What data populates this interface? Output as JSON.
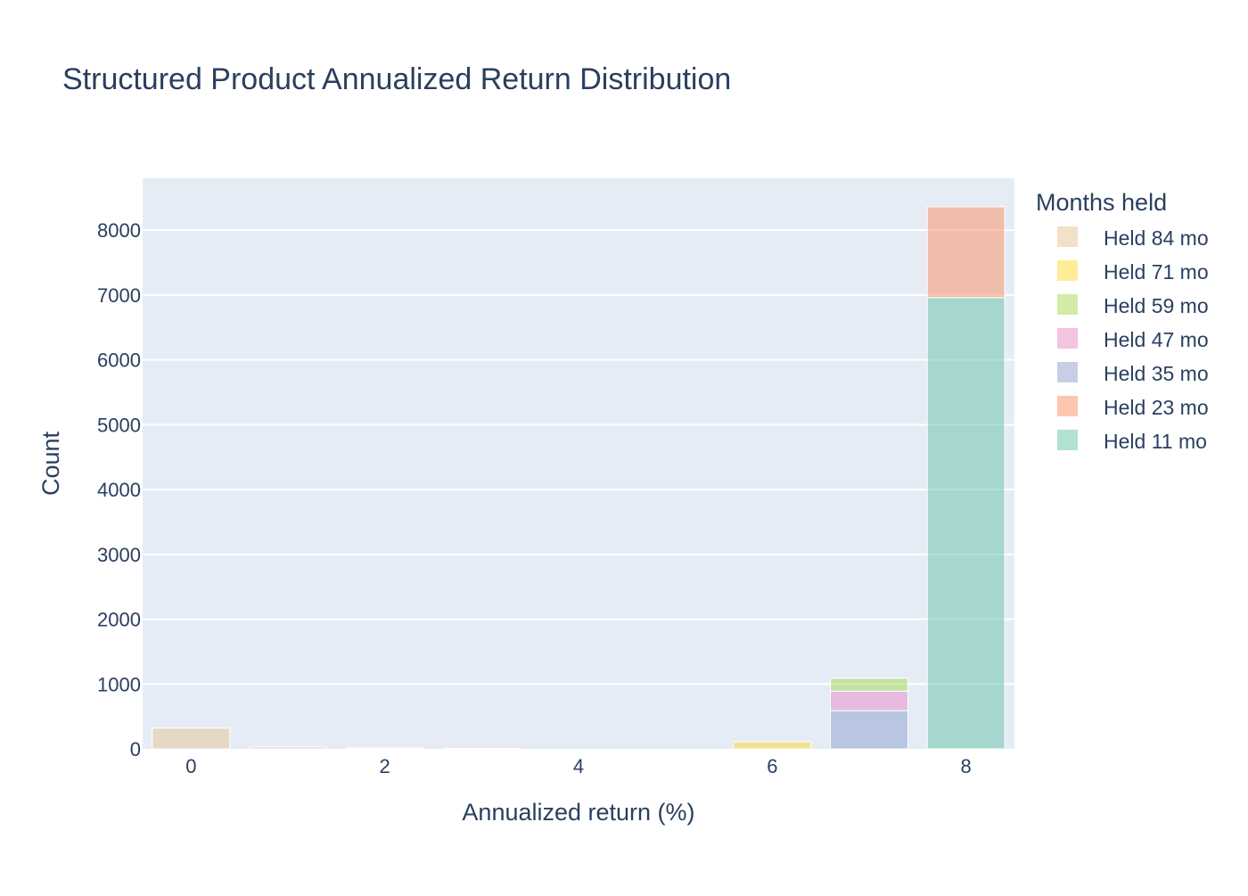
{
  "chart_data": {
    "type": "bar",
    "barmode": "stack",
    "title": "Structured Product Annualized Return Distribution",
    "xlabel": "Annualized return (%)",
    "ylabel": "Count",
    "x": [
      0,
      1,
      2,
      3,
      4,
      5,
      6,
      7,
      8
    ],
    "xlim": [
      -0.5,
      8.5
    ],
    "ylim": [
      0,
      8800
    ],
    "xticks": [
      0,
      2,
      4,
      6,
      8
    ],
    "yticks": [
      0,
      1000,
      2000,
      3000,
      4000,
      5000,
      6000,
      7000,
      8000
    ],
    "grid": true,
    "legend": {
      "title": "Months held",
      "placement": "right"
    },
    "series": [
      {
        "name": "Held 11 mo",
        "color": "#66c2a5",
        "values": [
          0,
          0,
          0,
          0,
          0,
          0,
          0,
          0,
          6960
        ]
      },
      {
        "name": "Held 23 mo",
        "color": "#fc8d62",
        "values": [
          0,
          0,
          0,
          0,
          0,
          0,
          0,
          0,
          1400
        ]
      },
      {
        "name": "Held 35 mo",
        "color": "#8da0cb",
        "values": [
          0,
          0,
          0,
          0,
          0,
          0,
          0,
          590,
          0
        ]
      },
      {
        "name": "Held 47 mo",
        "color": "#e78ac3",
        "values": [
          0,
          0,
          0,
          0,
          0,
          0,
          0,
          300,
          0
        ]
      },
      {
        "name": "Held 59 mo",
        "color": "#a6d854",
        "values": [
          0,
          0,
          0,
          0,
          0,
          0,
          0,
          200,
          0
        ]
      },
      {
        "name": "Held 71 mo",
        "color": "#ffd92f",
        "values": [
          0,
          0,
          0,
          0,
          0,
          0,
          110,
          0,
          0
        ]
      },
      {
        "name": "Held 84 mo",
        "color": "#e5c494",
        "values": [
          320,
          30,
          15,
          5,
          0,
          0,
          0,
          0,
          0
        ]
      }
    ]
  }
}
